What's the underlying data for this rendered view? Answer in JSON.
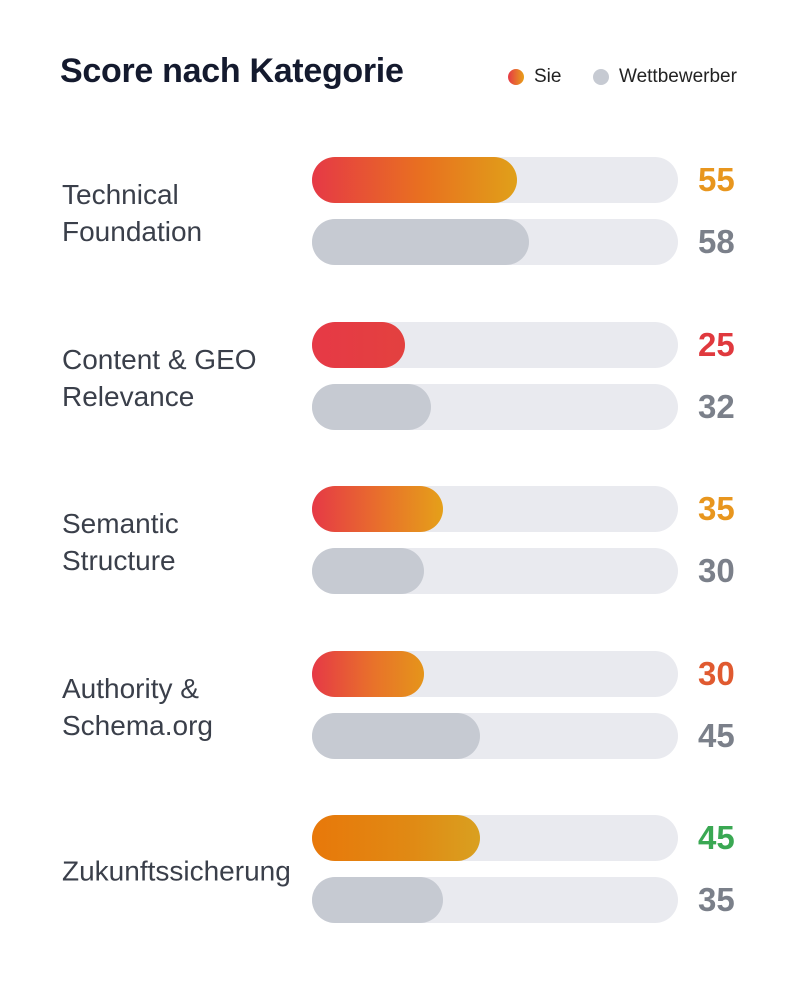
{
  "chart_data": {
    "type": "bar",
    "orientation": "horizontal",
    "title": "Score nach Kategorie",
    "xlim": [
      0,
      100
    ],
    "grid": false,
    "legend_placement": "top-right",
    "categories": [
      "Technical\nFoundation",
      "Content & GEO\nRelevance",
      "Semantic\nStructure",
      "Authority &\nSchema.org",
      "Zukunftssicherung"
    ],
    "series": [
      {
        "name": "Sie",
        "values": [
          55,
          25,
          35,
          30,
          45
        ],
        "value_colors": [
          "#e8961e",
          "#e0393e",
          "#e8961e",
          "#e05a30",
          "#3aa853"
        ],
        "color": "#e8741e"
      },
      {
        "name": "Wettbewerber",
        "values": [
          58,
          32,
          30,
          45,
          35
        ],
        "color": "#c6cad2",
        "value_color": "#7b808a"
      }
    ]
  },
  "colors": {
    "track": "#e9eaef",
    "title": "#141a2e"
  }
}
